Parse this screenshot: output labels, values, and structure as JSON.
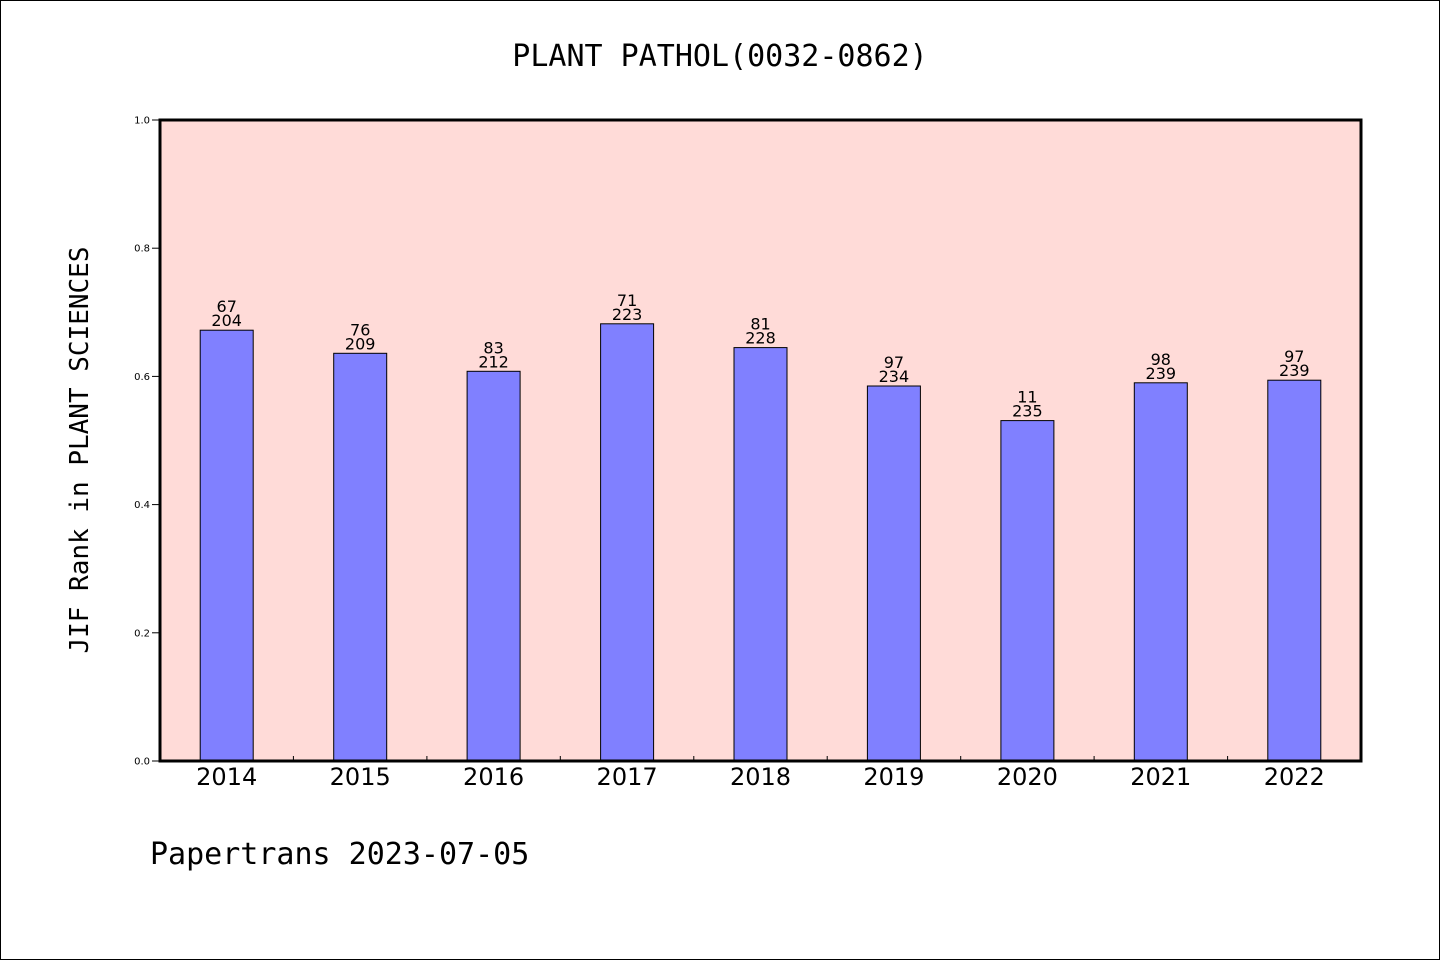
{
  "chart_data": {
    "type": "bar",
    "title": "PLANT PATHOL(0032-0862)",
    "xlabel": "",
    "ylabel": "JIF Rank in PLANT SCIENCES",
    "ylim": [
      0,
      1.0
    ],
    "yticks": [
      "0.0",
      "0.2",
      "0.4",
      "0.6",
      "0.8",
      "1.0"
    ],
    "grid": false,
    "categories": [
      "2014",
      "2015",
      "2016",
      "2017",
      "2018",
      "2019",
      "2020",
      "2021",
      "2022"
    ],
    "values": [
      0.672,
      0.636,
      0.608,
      0.682,
      0.645,
      0.585,
      0.531,
      0.59,
      0.594
    ],
    "labels_top": [
      "67",
      "76",
      "83",
      "71",
      "81",
      "97",
      "11",
      "98",
      "97"
    ],
    "labels_bottom": [
      "204",
      "209",
      "212",
      "223",
      "228",
      "234",
      "235",
      "239",
      "239"
    ],
    "colors": {
      "plot_background": "#ffdbd8",
      "bar": "#8080ff",
      "bar_edge": "#000000"
    }
  },
  "footer": {
    "text": "Papertrans 2023-07-05"
  }
}
